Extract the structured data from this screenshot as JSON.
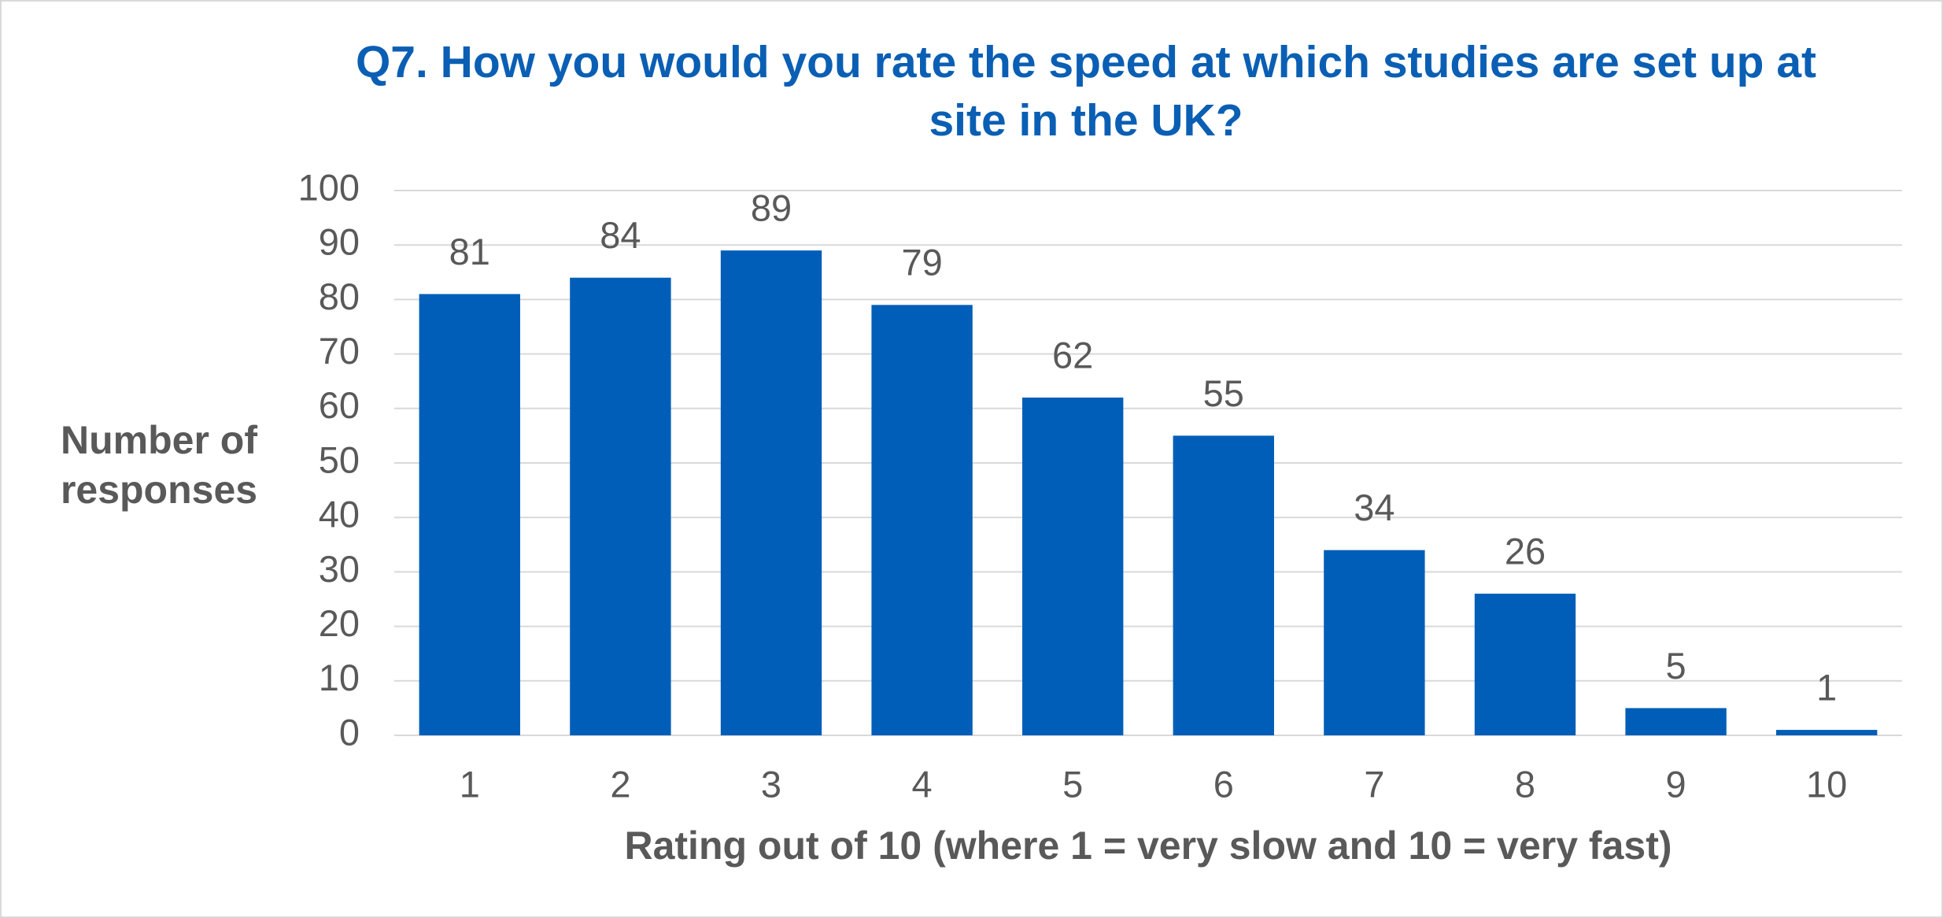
{
  "chart_data": {
    "type": "bar",
    "title": "Q7. How you would you rate the speed at which studies are set up at site in the UK?",
    "x_label": "Rating out of 10 (where 1 = very slow and 10 = very fast)",
    "y_label": "Number of responses",
    "categories": [
      "1",
      "2",
      "3",
      "4",
      "5",
      "6",
      "7",
      "8",
      "9",
      "10"
    ],
    "values": [
      81,
      84,
      89,
      79,
      62,
      55,
      34,
      26,
      5,
      1
    ],
    "color": "#005eb8",
    "ylim": [
      0,
      100
    ],
    "yticks": [
      0,
      10,
      20,
      30,
      40,
      50,
      60,
      70,
      80,
      90,
      100
    ],
    "grid": true
  }
}
